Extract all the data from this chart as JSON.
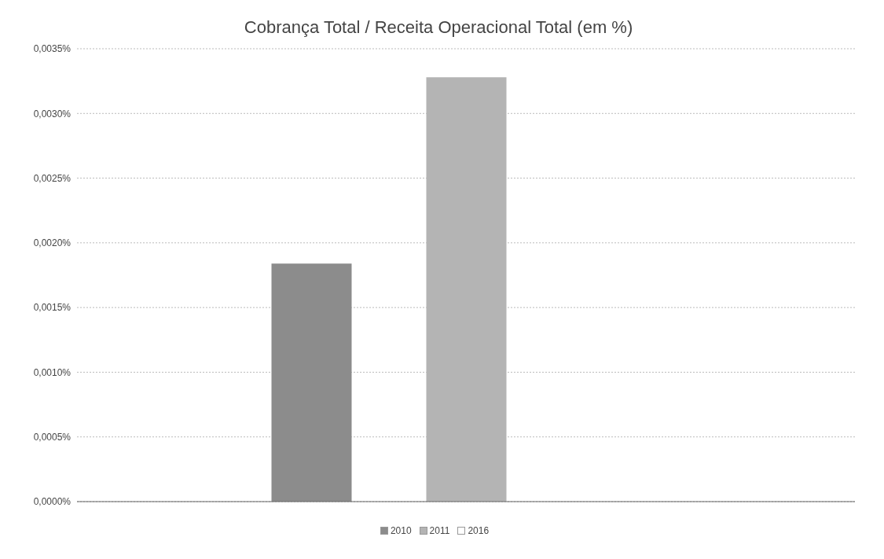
{
  "chart_data": {
    "type": "bar",
    "title": "Cobrança Total / Receita Operacional Total (em %)",
    "categories": [
      null
    ],
    "series": [
      {
        "name": "2010",
        "color": "#8c8c8c",
        "values": [
          0.00184
        ]
      },
      {
        "name": "2011",
        "color": "#b4b4b4",
        "values": [
          0.00328
        ]
      },
      {
        "name": "2016",
        "color": "#ffffff",
        "values": [
          null
        ]
      }
    ],
    "ylim": [
      0,
      0.0035
    ],
    "yticks": [
      {
        "value": 0,
        "label": "0,0000%"
      },
      {
        "value": 0.0005,
        "label": "0,0005%"
      },
      {
        "value": 0.001,
        "label": "0,0010%"
      },
      {
        "value": 0.0015,
        "label": "0,0015%"
      },
      {
        "value": 0.002,
        "label": "0,0020%"
      },
      {
        "value": 0.0025,
        "label": "0,0025%"
      },
      {
        "value": 0.003,
        "label": "0,0030%"
      },
      {
        "value": 0.0035,
        "label": "0,0035%"
      }
    ],
    "grid": "y",
    "legend": "bottom"
  }
}
